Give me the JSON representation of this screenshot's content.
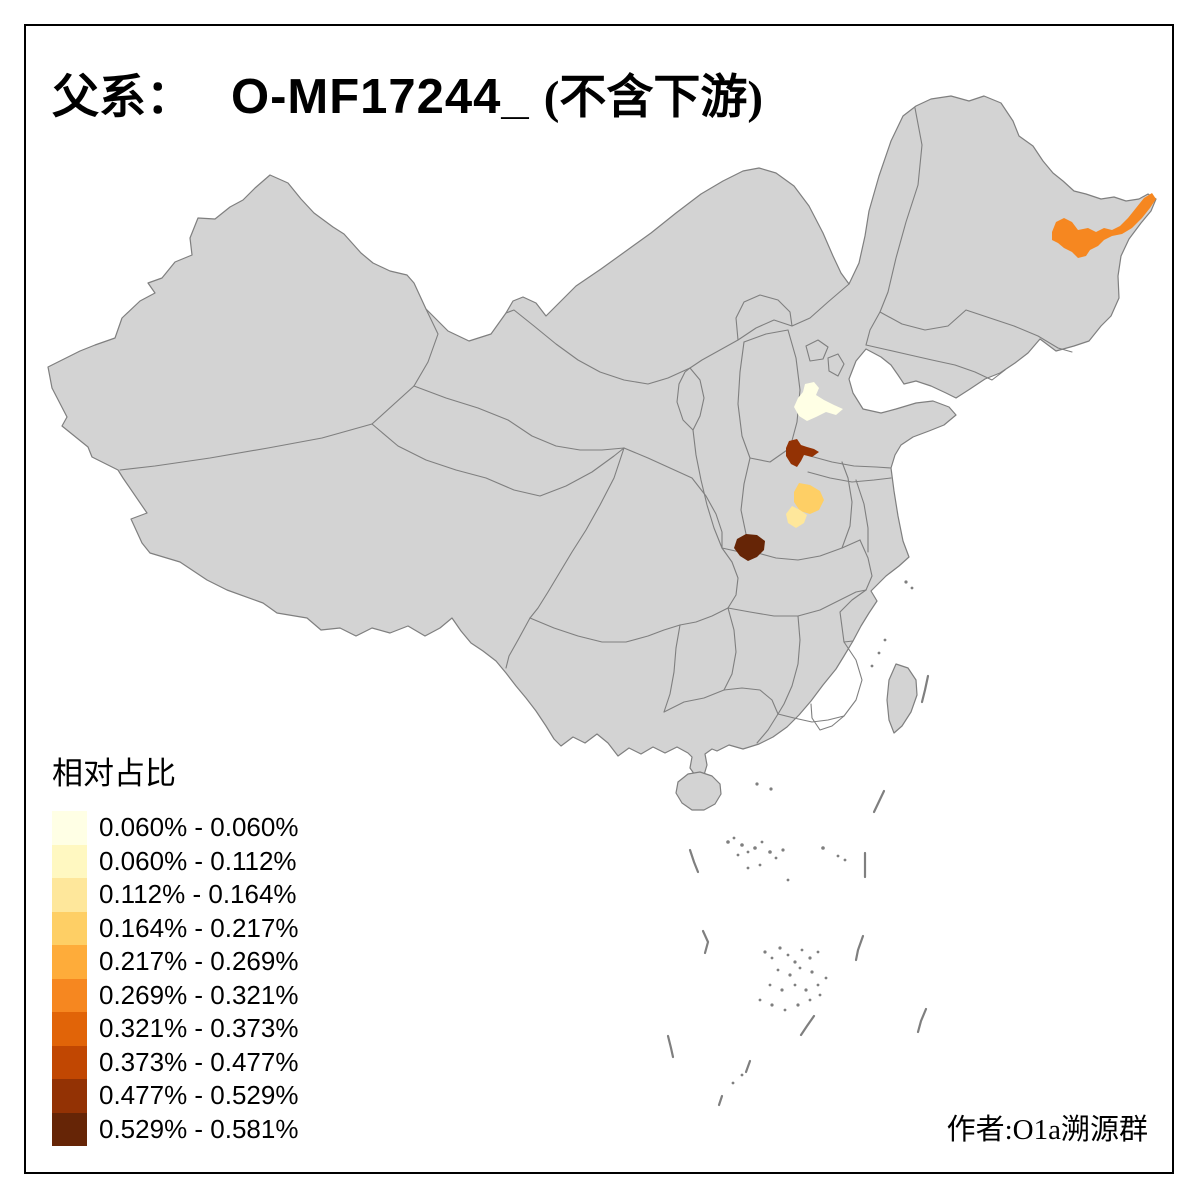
{
  "title": {
    "prefix": "父系：",
    "haplogroup": "O-MF17244_",
    "suffix": "(不含下游)"
  },
  "legend": {
    "title": "相对占比",
    "entries": [
      {
        "label": "0.060% - 0.060%",
        "color": "#FFFFE5"
      },
      {
        "label": "0.060% - 0.112%",
        "color": "#FFF8C1"
      },
      {
        "label": "0.112% - 0.164%",
        "color": "#FEE79B"
      },
      {
        "label": "0.164% - 0.217%",
        "color": "#FECF65"
      },
      {
        "label": "0.217% - 0.269%",
        "color": "#FEAC3A"
      },
      {
        "label": "0.269% - 0.321%",
        "color": "#F68720"
      },
      {
        "label": "0.321% - 0.373%",
        "color": "#E16408"
      },
      {
        "label": "0.373% - 0.477%",
        "color": "#C14702"
      },
      {
        "label": "0.477% - 0.529%",
        "color": "#933204"
      },
      {
        "label": "0.529% - 0.581%",
        "color": "#662506"
      }
    ]
  },
  "author": "作者:O1a溯源群",
  "map": {
    "background": "#FFFFFF",
    "land_fill": "#D3D3D3",
    "boundary_color": "#7F7F7F",
    "frame_color": "#000000",
    "highlighted_regions": [
      {
        "id": "region-northeast-orange",
        "range": "0.269% - 0.321%",
        "color": "#F68720"
      },
      {
        "id": "region-north-pale",
        "range": "0.060% - 0.060%",
        "color": "#FFFFE5"
      },
      {
        "id": "region-central-darkred",
        "range": "0.477% - 0.529%",
        "color": "#933204"
      },
      {
        "id": "region-central-gold",
        "range": "0.164% - 0.217%",
        "color": "#FECF65"
      },
      {
        "id": "region-central-lightgold",
        "range": "0.112% - 0.164%",
        "color": "#FEE79B"
      },
      {
        "id": "region-central-darkbrown",
        "range": "0.529% - 0.581%",
        "color": "#662506"
      }
    ]
  },
  "chart_data": {
    "type": "choropleth-map",
    "title": "父系： O-MF17244_ (不含下游)",
    "legend_title": "相对占比",
    "classes": [
      "0.060% - 0.060%",
      "0.060% - 0.112%",
      "0.112% - 0.164%",
      "0.164% - 0.217%",
      "0.217% - 0.269%",
      "0.269% - 0.321%",
      "0.321% - 0.373%",
      "0.373% - 0.477%",
      "0.477% - 0.529%",
      "0.529% - 0.581%"
    ],
    "palette": [
      "#FFFFE5",
      "#FFF8C1",
      "#FEE79B",
      "#FECF65",
      "#FEAC3A",
      "#F68720",
      "#E16408",
      "#C14702",
      "#933204",
      "#662506"
    ],
    "value_range_pct": [
      0.06,
      0.581
    ],
    "shaded_region_values_pct": [
      {
        "region": "northeast-orange",
        "range": [
          0.269,
          0.321
        ]
      },
      {
        "region": "north-pale",
        "range": [
          0.06,
          0.06
        ]
      },
      {
        "region": "central-darkred",
        "range": [
          0.477,
          0.529
        ]
      },
      {
        "region": "central-gold",
        "range": [
          0.164,
          0.217
        ]
      },
      {
        "region": "central-lightgold",
        "range": [
          0.112,
          0.164
        ]
      },
      {
        "region": "central-darkbrown",
        "range": [
          0.529,
          0.581
        ]
      }
    ]
  }
}
